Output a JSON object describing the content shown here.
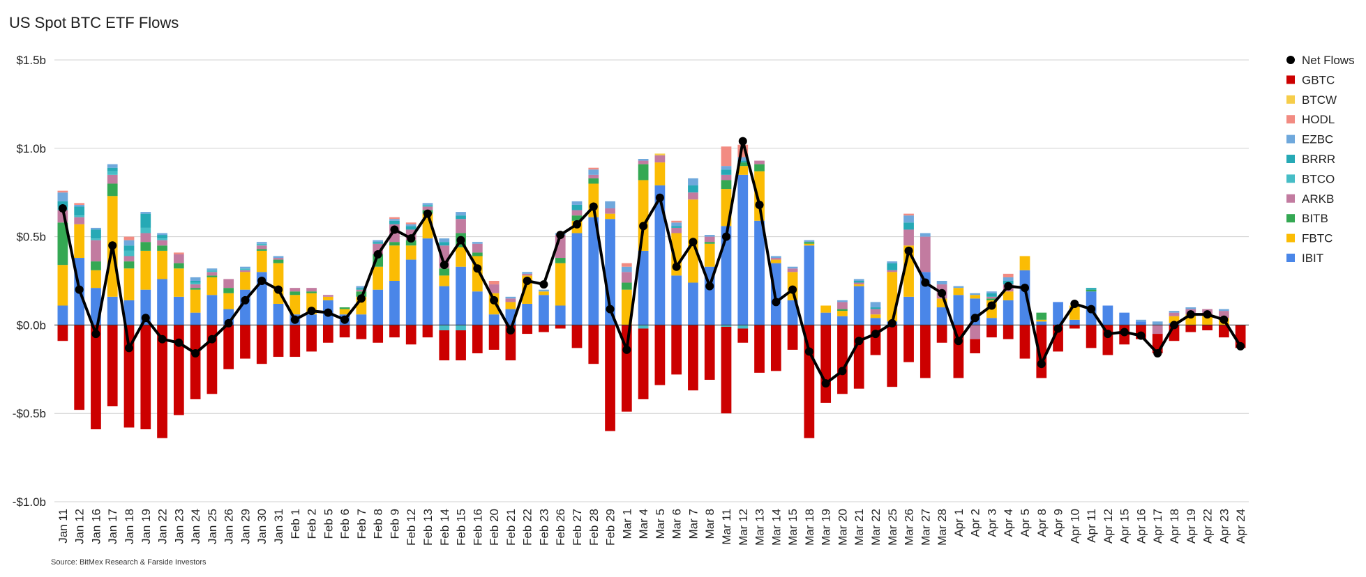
{
  "chart_data": {
    "type": "bar",
    "stacked": true,
    "title": "US Spot BTC ETF Flows",
    "source": "Source: BitMex Research & Farside Investors",
    "xlabel": "",
    "ylabel": "",
    "ylim": [
      -1.0,
      1.5
    ],
    "y_ticks": [
      {
        "value": 1.5,
        "label": "$1.5b"
      },
      {
        "value": 1.0,
        "label": "$1.0b"
      },
      {
        "value": 0.5,
        "label": "$0.5b"
      },
      {
        "value": 0.0,
        "label": "$0.0b"
      },
      {
        "value": -0.5,
        "label": "-$0.5b"
      },
      {
        "value": -1.0,
        "label": "-$1.0b"
      }
    ],
    "grid": true,
    "legend_position": "right",
    "categories": [
      "Jan 11",
      "Jan 12",
      "Jan 16",
      "Jan 17",
      "Jan 18",
      "Jan 19",
      "Jan 22",
      "Jan 23",
      "Jan 24",
      "Jan 25",
      "Jan 26",
      "Jan 29",
      "Jan 30",
      "Jan 31",
      "Feb 1",
      "Feb 2",
      "Feb 5",
      "Feb 6",
      "Feb 7",
      "Feb 8",
      "Feb 9",
      "Feb 12",
      "Feb 13",
      "Feb 14",
      "Feb 15",
      "Feb 16",
      "Feb 20",
      "Feb 21",
      "Feb 22",
      "Feb 23",
      "Feb 26",
      "Feb 27",
      "Feb 28",
      "Feb 29",
      "Mar 1",
      "Mar 4",
      "Mar 5",
      "Mar 6",
      "Mar 7",
      "Mar 8",
      "Mar 11",
      "Mar 12",
      "Mar 13",
      "Mar 14",
      "Mar 15",
      "Mar 18",
      "Mar 19",
      "Mar 20",
      "Mar 21",
      "Mar 22",
      "Mar 25",
      "Mar 26",
      "Mar 27",
      "Mar 28",
      "Apr 1",
      "Apr 2",
      "Apr 3",
      "Apr 4",
      "Apr 5",
      "Apr 8",
      "Apr 9",
      "Apr 10",
      "Apr 11",
      "Apr 12",
      "Apr 15",
      "Apr 16",
      "Apr 17",
      "Apr 18",
      "Apr 19",
      "Apr 22",
      "Apr 23",
      "Apr 24"
    ],
    "legend": [
      "Net Flows",
      "GBTC",
      "BTCW",
      "HODL",
      "EZBC",
      "BRRR",
      "BTCO",
      "ARKB",
      "BITB",
      "FBTC",
      "IBIT"
    ],
    "series": [
      {
        "name": "IBIT",
        "color": "#4a86e8",
        "values": [
          0.11,
          0.38,
          0.21,
          0.16,
          0.14,
          0.2,
          0.26,
          0.16,
          0.07,
          0.17,
          0.09,
          0.2,
          0.3,
          0.12,
          0.06,
          0.06,
          0.14,
          0.06,
          0.06,
          0.2,
          0.25,
          0.37,
          0.49,
          0.22,
          0.33,
          0.19,
          0.06,
          0.09,
          0.12,
          0.17,
          0.11,
          0.52,
          0.61,
          0.6,
          0.0,
          0.42,
          0.79,
          0.28,
          0.24,
          0.33,
          0.56,
          0.85,
          0.59,
          0.35,
          0.14,
          0.45,
          0.07,
          0.05,
          0.22,
          0.04,
          0.02,
          0.16,
          0.3,
          0.1,
          0.17,
          0.15,
          0.04,
          0.14,
          0.31,
          0.02,
          0.13,
          0.03,
          0.19,
          0.11,
          0.07,
          0.02,
          0.0,
          0.01,
          0.0,
          0.0,
          0.0,
          0.0
        ]
      },
      {
        "name": "FBTC",
        "color": "#fbbc04",
        "values": [
          0.23,
          0.19,
          0.1,
          0.57,
          0.18,
          0.22,
          0.16,
          0.16,
          0.13,
          0.1,
          0.09,
          0.1,
          0.12,
          0.23,
          0.11,
          0.12,
          0.02,
          0.03,
          0.1,
          0.13,
          0.2,
          0.08,
          0.14,
          0.06,
          0.11,
          0.2,
          0.12,
          0.04,
          0.16,
          0.02,
          0.24,
          0.07,
          0.19,
          0.03,
          0.2,
          0.4,
          0.13,
          0.24,
          0.47,
          0.13,
          0.21,
          0.05,
          0.28,
          0.02,
          0.16,
          0.01,
          0.04,
          0.03,
          0.01,
          0.02,
          0.28,
          0.29,
          0.0,
          0.05,
          0.04,
          0.02,
          0.1,
          0.05,
          0.08,
          0.01,
          0.0,
          0.08,
          0.0,
          0.0,
          0.0,
          0.0,
          0.0,
          0.04,
          0.06,
          0.06,
          0.04,
          0.0
        ]
      },
      {
        "name": "BITB",
        "color": "#34a853",
        "values": [
          0.24,
          0.0,
          0.05,
          0.07,
          0.04,
          0.05,
          0.03,
          0.03,
          0.01,
          0.01,
          0.03,
          0.0,
          0.01,
          0.02,
          0.02,
          0.01,
          0.0,
          0.01,
          0.03,
          0.07,
          0.02,
          0.03,
          0.02,
          0.04,
          0.08,
          0.02,
          0.0,
          0.0,
          0.0,
          0.0,
          0.03,
          0.03,
          0.03,
          0.0,
          0.04,
          0.09,
          0.0,
          0.0,
          0.0,
          0.01,
          0.05,
          0.02,
          0.04,
          0.0,
          0.0,
          0.01,
          0.0,
          0.01,
          0.0,
          0.0,
          0.0,
          0.0,
          0.0,
          0.0,
          0.0,
          0.0,
          0.01,
          0.0,
          0.0,
          0.04,
          0.0,
          0.0,
          0.01,
          0.0,
          0.0,
          0.0,
          0.0,
          0.0,
          0.0,
          0.0,
          0.0,
          0.0
        ]
      },
      {
        "name": "ARKB",
        "color": "#c27ba0",
        "values": [
          0.07,
          0.04,
          0.12,
          0.05,
          0.03,
          0.05,
          0.03,
          0.05,
          0.02,
          0.02,
          0.05,
          0.01,
          0.02,
          0.01,
          0.02,
          0.02,
          0.01,
          0.0,
          0.01,
          0.06,
          0.1,
          0.06,
          0.02,
          0.13,
          0.08,
          0.05,
          0.05,
          0.02,
          0.01,
          0.0,
          0.13,
          0.03,
          0.02,
          0.03,
          0.06,
          0.02,
          0.04,
          0.03,
          0.04,
          0.03,
          0.03,
          0.0,
          0.02,
          0.01,
          0.02,
          0.0,
          0.0,
          0.04,
          0.01,
          0.03,
          0.01,
          0.09,
          0.2,
          0.08,
          0.0,
          -0.08,
          0.01,
          0.04,
          0.0,
          0.0,
          0.0,
          0.0,
          0.0,
          0.0,
          0.0,
          0.0,
          -0.05,
          0.02,
          0.03,
          0.03,
          0.04,
          0.0
        ]
      },
      {
        "name": "BTCO",
        "color": "#46bdc6",
        "values": [
          0.02,
          0.01,
          0.01,
          0.02,
          0.03,
          0.03,
          0.01,
          0.0,
          0.01,
          0.01,
          0.0,
          0.01,
          0.01,
          0.0,
          0.0,
          0.0,
          0.0,
          0.0,
          0.0,
          0.0,
          0.0,
          0.0,
          0.01,
          -0.03,
          -0.03,
          0.0,
          0.0,
          0.0,
          0.0,
          0.0,
          0.0,
          0.0,
          0.0,
          0.0,
          0.0,
          -0.02,
          0.0,
          0.0,
          0.0,
          0.0,
          -0.01,
          -0.02,
          0.0,
          0.0,
          0.0,
          0.0,
          0.0,
          0.0,
          0.0,
          0.0,
          0.0,
          0.0,
          0.0,
          0.0,
          0.0,
          0.0,
          0.0,
          0.0,
          0.0,
          0.0,
          0.0,
          0.0,
          0.0,
          0.0,
          0.0,
          0.0,
          0.0,
          0.0,
          0.0,
          0.0,
          0.0,
          0.0
        ]
      },
      {
        "name": "BRRR",
        "color": "#26a9b5",
        "values": [
          0.03,
          0.05,
          0.05,
          0.02,
          0.03,
          0.08,
          0.02,
          0.0,
          0.01,
          0.0,
          0.0,
          0.0,
          0.0,
          0.0,
          0.0,
          0.0,
          0.0,
          0.0,
          0.01,
          0.01,
          0.02,
          0.02,
          0.0,
          0.02,
          0.02,
          0.0,
          0.0,
          0.0,
          0.0,
          0.0,
          0.0,
          0.03,
          0.0,
          0.0,
          0.0,
          0.0,
          0.0,
          0.01,
          0.04,
          0.0,
          0.03,
          0.01,
          0.0,
          0.0,
          0.0,
          0.0,
          0.0,
          0.0,
          0.01,
          0.01,
          0.04,
          0.04,
          0.0,
          0.0,
          0.0,
          0.0,
          0.02,
          0.02,
          0.0,
          0.0,
          0.0,
          0.0,
          0.01,
          0.0,
          0.0,
          0.0,
          0.0,
          0.0,
          0.0,
          0.0,
          0.0,
          0.0
        ]
      },
      {
        "name": "EZBC",
        "color": "#6fa8dc",
        "values": [
          0.05,
          0.01,
          0.01,
          0.02,
          0.03,
          0.01,
          0.01,
          0.0,
          0.02,
          0.01,
          0.0,
          0.01,
          0.01,
          0.01,
          0.0,
          0.0,
          0.0,
          0.0,
          0.01,
          0.01,
          0.01,
          0.01,
          0.01,
          0.02,
          0.02,
          0.01,
          0.0,
          0.01,
          0.01,
          0.01,
          0.01,
          0.02,
          0.03,
          0.04,
          0.03,
          0.01,
          0.0,
          0.02,
          0.04,
          0.01,
          0.02,
          0.02,
          0.0,
          0.01,
          0.01,
          0.01,
          0.0,
          0.01,
          0.01,
          0.03,
          0.01,
          0.04,
          0.02,
          0.02,
          0.01,
          0.01,
          0.01,
          0.02,
          0.0,
          0.0,
          0.0,
          0.0,
          0.0,
          0.0,
          0.0,
          0.01,
          0.02,
          0.01,
          0.01,
          0.0,
          0.01,
          0.0
        ]
      },
      {
        "name": "HODL",
        "color": "#f28b82",
        "values": [
          0.01,
          0.01,
          0.0,
          0.0,
          0.02,
          0.0,
          0.0,
          0.01,
          0.0,
          0.0,
          0.0,
          0.0,
          0.0,
          0.0,
          0.0,
          0.0,
          0.0,
          0.0,
          0.0,
          0.0,
          0.01,
          0.01,
          0.0,
          0.0,
          0.0,
          0.0,
          0.02,
          0.0,
          0.0,
          0.0,
          0.0,
          0.0,
          0.01,
          0.0,
          0.02,
          0.0,
          0.0,
          0.01,
          0.0,
          0.0,
          0.11,
          0.07,
          0.0,
          0.0,
          0.0,
          0.0,
          0.0,
          0.0,
          0.0,
          0.0,
          0.0,
          0.01,
          0.0,
          0.0,
          0.0,
          0.0,
          0.0,
          0.02,
          0.0,
          0.0,
          0.0,
          0.0,
          0.0,
          0.0,
          0.0,
          0.0,
          0.0,
          0.0,
          0.0,
          0.0,
          0.0,
          0.0
        ]
      },
      {
        "name": "BTCW",
        "color": "#f6cd4a",
        "values": [
          0.0,
          0.0,
          0.0,
          0.0,
          0.0,
          0.0,
          0.0,
          0.0,
          0.0,
          0.0,
          0.0,
          0.0,
          0.0,
          0.0,
          0.0,
          0.0,
          0.0,
          0.0,
          0.0,
          0.0,
          0.0,
          0.0,
          0.0,
          0.0,
          0.0,
          0.0,
          0.0,
          0.0,
          0.0,
          0.0,
          0.0,
          0.0,
          0.0,
          0.0,
          0.0,
          0.0,
          0.01,
          0.0,
          0.0,
          0.0,
          0.0,
          0.0,
          0.0,
          0.0,
          0.0,
          0.0,
          0.0,
          0.0,
          0.0,
          0.0,
          0.0,
          0.0,
          0.0,
          0.0,
          0.0,
          0.0,
          0.0,
          0.0,
          0.0,
          0.0,
          0.0,
          0.0,
          0.0,
          0.0,
          0.0,
          0.0,
          0.0,
          0.0,
          0.0,
          0.0,
          0.0,
          0.0
        ]
      },
      {
        "name": "GBTC",
        "color": "#cc0000",
        "values": [
          -0.09,
          -0.48,
          -0.59,
          -0.46,
          -0.58,
          -0.59,
          -0.64,
          -0.51,
          -0.42,
          -0.39,
          -0.25,
          -0.19,
          -0.22,
          -0.18,
          -0.18,
          -0.15,
          -0.1,
          -0.07,
          -0.08,
          -0.1,
          -0.07,
          -0.11,
          -0.07,
          -0.17,
          -0.17,
          -0.16,
          -0.14,
          -0.2,
          -0.05,
          -0.04,
          -0.02,
          -0.13,
          -0.22,
          -0.6,
          -0.49,
          -0.4,
          -0.34,
          -0.28,
          -0.37,
          -0.31,
          -0.49,
          -0.08,
          -0.27,
          -0.26,
          -0.14,
          -0.64,
          -0.44,
          -0.39,
          -0.36,
          -0.17,
          -0.35,
          -0.21,
          -0.3,
          -0.1,
          -0.3,
          -0.08,
          -0.07,
          -0.08,
          -0.19,
          -0.3,
          -0.15,
          -0.02,
          -0.13,
          -0.17,
          -0.11,
          -0.08,
          -0.11,
          -0.09,
          -0.04,
          -0.03,
          -0.07,
          -0.13
        ]
      }
    ],
    "net_flows": {
      "name": "Net Flows",
      "color": "#000000",
      "values": [
        0.66,
        0.2,
        -0.05,
        0.45,
        -0.13,
        0.04,
        -0.08,
        -0.1,
        -0.16,
        -0.08,
        0.01,
        0.14,
        0.25,
        0.2,
        0.03,
        0.08,
        0.07,
        0.03,
        0.15,
        0.4,
        0.54,
        0.49,
        0.63,
        0.34,
        0.48,
        0.32,
        0.14,
        -0.03,
        0.25,
        0.23,
        0.51,
        0.57,
        0.67,
        0.09,
        -0.14,
        0.56,
        0.72,
        0.33,
        0.47,
        0.22,
        0.5,
        1.04,
        0.68,
        0.13,
        0.2,
        -0.15,
        -0.33,
        -0.26,
        -0.09,
        -0.05,
        0.01,
        0.42,
        0.24,
        0.18,
        -0.09,
        0.04,
        0.11,
        0.22,
        0.21,
        -0.22,
        -0.02,
        0.12,
        0.09,
        -0.05,
        -0.04,
        -0.06,
        -0.16,
        0.0,
        0.06,
        0.06,
        0.03,
        -0.12
      ]
    }
  }
}
